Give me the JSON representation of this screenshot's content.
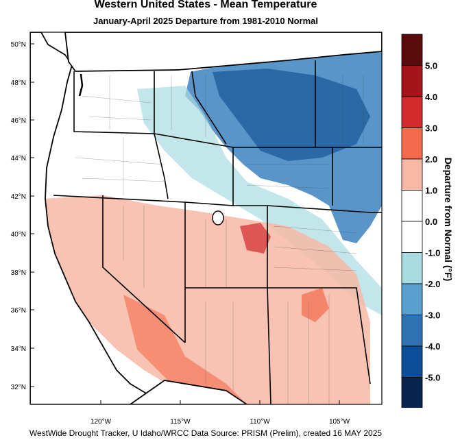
{
  "title": "Western United States - Mean Temperature",
  "subtitle": "January-April 2025  Departure from 1981-2010 Normal",
  "legend": {
    "title": "Departure from Normal (°F)",
    "bins": [
      {
        "label": "",
        "color": "#5c0b0d"
      },
      {
        "label": "5.0",
        "color": "#a51419"
      },
      {
        "label": "4.0",
        "color": "#d42a2c"
      },
      {
        "label": "3.0",
        "color": "#f36b4c"
      },
      {
        "label": "2.0",
        "color": "#f7b8a5"
      },
      {
        "label": "1.0",
        "color": "#ffffff"
      },
      {
        "label": "0.0",
        "color": "#ffffff"
      },
      {
        "label": "-1.0",
        "color": "#a9dbe3"
      },
      {
        "label": "-2.0",
        "color": "#5aa0cf"
      },
      {
        "label": "-3.0",
        "color": "#2e73b4"
      },
      {
        "label": "-4.0",
        "color": "#0a4f97"
      },
      {
        "label": "-5.0",
        "color": "#07234e"
      }
    ]
  },
  "lat_labels": [
    "50°N",
    "48°N",
    "46°N",
    "44°N",
    "42°N",
    "40°N",
    "38°N",
    "36°N",
    "34°N",
    "32°N"
  ],
  "lon_labels": [
    "120°W",
    "115°W",
    "110°W",
    "105°W"
  ],
  "credit": "WestWide Drought Tracker, U Idaho/WRCC Data Source: PRISM (Prelim), created 16 MAY 2025"
}
